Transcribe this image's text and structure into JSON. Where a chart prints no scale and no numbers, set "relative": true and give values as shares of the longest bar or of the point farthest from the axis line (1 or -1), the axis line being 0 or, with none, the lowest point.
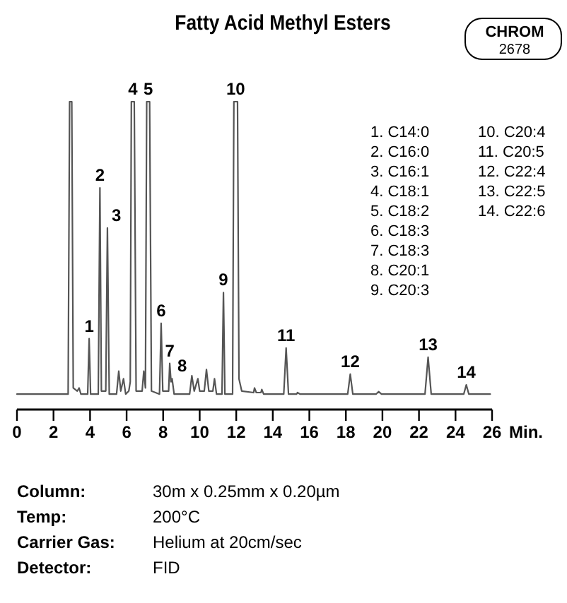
{
  "chart_data": {
    "type": "line",
    "title": "Fatty Acid Methyl Esters",
    "xlabel": "Min.",
    "relative": true,
    "xlim": [
      0,
      26
    ],
    "xticks": [
      0,
      2,
      4,
      6,
      8,
      10,
      12,
      14,
      16,
      18,
      20,
      22,
      24,
      26
    ],
    "grid": false,
    "marker": "none",
    "line_style": "solid",
    "series": [
      {
        "color": "#555555",
        "x": [
          0,
          2.8,
          2.88,
          3.0,
          3.08,
          3.3,
          3.4,
          3.5,
          3.87,
          3.95,
          4.03,
          4.45,
          4.54,
          4.62,
          4.86,
          4.95,
          5.05,
          5.45,
          5.57,
          5.68,
          5.83,
          5.95,
          6.12,
          6.2,
          6.26,
          6.42,
          6.52,
          6.85,
          6.94,
          7.03,
          7.1,
          7.26,
          7.36,
          7.8,
          7.89,
          7.98,
          8.3,
          8.36,
          8.43,
          8.49,
          8.6,
          9.45,
          9.57,
          9.7,
          9.9,
          10.0,
          10.25,
          10.37,
          10.5,
          10.72,
          10.81,
          10.92,
          11.22,
          11.3,
          11.38,
          11.8,
          11.87,
          12.07,
          12.15,
          12.3,
          12.95,
          13.0,
          13.1,
          13.35,
          13.4,
          13.5,
          14.6,
          14.73,
          14.86,
          15.3,
          15.35,
          15.5,
          18.1,
          18.24,
          18.38,
          19.65,
          19.79,
          19.95,
          22.33,
          22.5,
          22.67,
          24.45,
          24.59,
          24.73,
          25.9
        ],
        "values": [
          0.05,
          0.05,
          1,
          1,
          0.07,
          0.06,
          0.07,
          0.05,
          0.05,
          0.23,
          0.05,
          0.05,
          0.72,
          0.06,
          0.06,
          0.59,
          0.05,
          0.05,
          0.125,
          0.06,
          0.1,
          0.05,
          0.06,
          0.09,
          1,
          1,
          0.06,
          0.06,
          0.125,
          0.07,
          1,
          1,
          0.06,
          0.05,
          0.28,
          0.06,
          0.06,
          0.15,
          0.09,
          0.1,
          0.05,
          0.05,
          0.11,
          0.06,
          0.1,
          0.06,
          0.06,
          0.13,
          0.06,
          0.06,
          0.1,
          0.05,
          0.05,
          0.38,
          0.05,
          0.05,
          1,
          1,
          0.1,
          0.06,
          0.055,
          0.07,
          0.055,
          0.055,
          0.065,
          0.05,
          0.05,
          0.2,
          0.05,
          0.05,
          0.055,
          0.05,
          0.05,
          0.115,
          0.05,
          0.05,
          0.058,
          0.05,
          0.05,
          0.17,
          0.05,
          0.05,
          0.08,
          0.05,
          0.05
        ]
      }
    ],
    "annotations": [
      "CHROM 2678",
      {
        "text": "1",
        "x": 3.95,
        "y": 0.23
      },
      {
        "text": "2",
        "x": 4.54,
        "y": 0.72
      },
      {
        "text": "3",
        "x": 4.95,
        "y": 0.59
      },
      {
        "text": "4",
        "x": 6.34,
        "y": 1
      },
      {
        "text": "5",
        "x": 7.18,
        "y": 1
      },
      {
        "text": "6",
        "x": 7.89,
        "y": 0.28
      },
      {
        "text": "7",
        "x": 8.36,
        "y": 0.15
      },
      {
        "text": "8",
        "x": 8.55,
        "y": 0.1
      },
      {
        "text": "9",
        "x": 11.3,
        "y": 0.38
      },
      {
        "text": "10",
        "x": 11.97,
        "y": 1
      },
      {
        "text": "11",
        "x": 14.73,
        "y": 0.2
      },
      {
        "text": "12",
        "x": 18.24,
        "y": 0.115
      },
      {
        "text": "13",
        "x": 22.5,
        "y": 0.17
      },
      {
        "text": "14",
        "x": 24.59,
        "y": 0.08
      },
      "1. C14:0",
      "2. C16:0",
      "3. C16:1",
      "4. C18:1",
      "5. C18:2",
      "6. C18:3",
      "7. C18:3",
      "8. C20:1",
      "9. C20:3",
      "10. C20:4",
      "11. C20:5",
      "12. C22:4",
      "13. C22:5",
      "14. C22:6",
      "Column: 30m x 0.25mm x 0.20µm",
      "Temp: 200°C",
      "Carrier Gas: Helium at 20cm/sec",
      "Detector: FID"
    ]
  }
}
